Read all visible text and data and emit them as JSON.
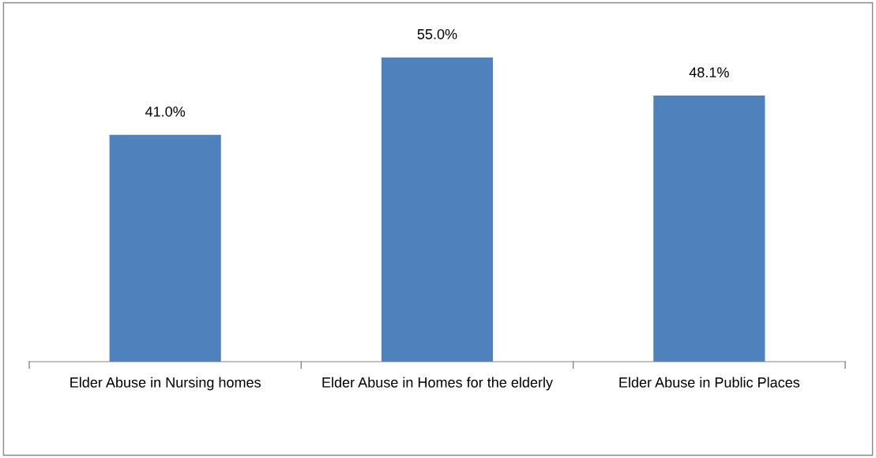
{
  "chart_data": {
    "type": "bar",
    "categories": [
      "Elder Abuse in Nursing homes",
      "Elder Abuse in Homes for the elderly",
      "Elder Abuse in Public Places"
    ],
    "values": [
      41.0,
      55.0,
      48.1
    ],
    "value_labels": [
      "41.0%",
      "55.0%",
      "48.1%"
    ],
    "color": "#4f81bd",
    "grid": false,
    "legend": false
  }
}
